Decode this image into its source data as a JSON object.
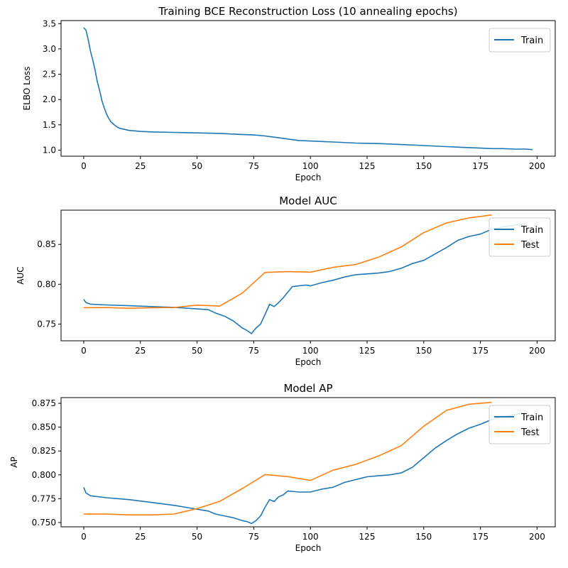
{
  "colors": {
    "train": "#1f77b4",
    "test": "#ff7f0e",
    "axis": "#000000",
    "legend_border": "#cccccc"
  },
  "chart_data": [
    {
      "type": "line",
      "title": "Training BCE Reconstruction Loss (10 annealing epochs)",
      "xlabel": "Epoch",
      "ylabel": "ELBO Loss",
      "xlim": [
        -10,
        208
      ],
      "ylim": [
        0.88,
        3.56
      ],
      "xticks": [
        0,
        25,
        50,
        75,
        100,
        125,
        150,
        175,
        200
      ],
      "yticks": [
        1.0,
        1.5,
        2.0,
        2.5,
        3.0,
        3.5
      ],
      "ytick_labels": [
        "1.0",
        "1.5",
        "2.0",
        "2.5",
        "3.0",
        "3.5"
      ],
      "grid": false,
      "legend": "upper-right",
      "series": [
        {
          "name": "Train",
          "color": "#1f77b4",
          "x": [
            0,
            1,
            2,
            3,
            4,
            5,
            6,
            7,
            8,
            9,
            10,
            11,
            12,
            13,
            14,
            15,
            16,
            18,
            20,
            25,
            30,
            40,
            50,
            60,
            70,
            75,
            80,
            85,
            90,
            95,
            100,
            105,
            110,
            120,
            130,
            140,
            150,
            160,
            170,
            175,
            180,
            185,
            190,
            195,
            198
          ],
          "y": [
            3.42,
            3.37,
            3.18,
            2.95,
            2.78,
            2.58,
            2.35,
            2.18,
            1.98,
            1.84,
            1.72,
            1.63,
            1.56,
            1.52,
            1.48,
            1.45,
            1.43,
            1.41,
            1.39,
            1.37,
            1.36,
            1.35,
            1.34,
            1.33,
            1.31,
            1.3,
            1.28,
            1.25,
            1.22,
            1.19,
            1.18,
            1.17,
            1.16,
            1.14,
            1.13,
            1.11,
            1.09,
            1.07,
            1.05,
            1.04,
            1.03,
            1.03,
            1.02,
            1.02,
            1.01
          ]
        }
      ]
    },
    {
      "type": "line",
      "title": "Model AUC",
      "xlabel": "Epoch",
      "ylabel": "AUC",
      "xlim": [
        -10,
        208
      ],
      "ylim": [
        0.729,
        0.893
      ],
      "xticks": [
        0,
        25,
        50,
        75,
        100,
        125,
        150,
        175,
        200
      ],
      "yticks": [
        0.75,
        0.8,
        0.85
      ],
      "ytick_labels": [
        "0.75",
        "0.80",
        "0.85"
      ],
      "grid": false,
      "legend": "upper-right",
      "series": [
        {
          "name": "Train",
          "color": "#1f77b4",
          "x": [
            0,
            1,
            3,
            10,
            20,
            30,
            40,
            45,
            50,
            55,
            58,
            62,
            66,
            70,
            72,
            74,
            76,
            78,
            80,
            82,
            84,
            86,
            88,
            90,
            92,
            95,
            98,
            100,
            105,
            110,
            115,
            120,
            125,
            130,
            135,
            140,
            145,
            150,
            155,
            160,
            165,
            170,
            175,
            180,
            185,
            190,
            195
          ],
          "y": [
            0.781,
            0.777,
            0.775,
            0.774,
            0.773,
            0.772,
            0.771,
            0.77,
            0.769,
            0.768,
            0.764,
            0.76,
            0.754,
            0.745,
            0.742,
            0.738,
            0.745,
            0.75,
            0.762,
            0.775,
            0.772,
            0.777,
            0.783,
            0.79,
            0.797,
            0.798,
            0.799,
            0.798,
            0.802,
            0.805,
            0.809,
            0.812,
            0.813,
            0.814,
            0.816,
            0.82,
            0.826,
            0.83,
            0.838,
            0.846,
            0.855,
            0.86,
            0.863,
            0.869,
            0.872,
            0.874,
            0.876
          ]
        },
        {
          "name": "Test",
          "color": "#ff7f0e",
          "x": [
            0,
            10,
            20,
            30,
            40,
            50,
            60,
            70,
            80,
            90,
            100,
            110,
            120,
            130,
            140,
            150,
            160,
            170,
            180
          ],
          "y": [
            0.7705,
            0.7707,
            0.7698,
            0.7705,
            0.7708,
            0.7737,
            0.7726,
            0.789,
            0.8148,
            0.8158,
            0.8152,
            0.8212,
            0.8248,
            0.834,
            0.8467,
            0.8648,
            0.877,
            0.8833,
            0.887
          ]
        }
      ]
    },
    {
      "type": "line",
      "title": "Model AP",
      "xlabel": "Epoch",
      "ylabel": "AP",
      "xlim": [
        -10,
        208
      ],
      "ylim": [
        0.7455,
        0.881
      ],
      "xticks": [
        0,
        25,
        50,
        75,
        100,
        125,
        150,
        175,
        200
      ],
      "yticks": [
        0.75,
        0.775,
        0.8,
        0.825,
        0.85,
        0.875
      ],
      "ytick_labels": [
        "0.750",
        "0.775",
        "0.800",
        "0.825",
        "0.850",
        "0.875"
      ],
      "grid": false,
      "legend": "upper-right",
      "series": [
        {
          "name": "Train",
          "color": "#1f77b4",
          "x": [
            0,
            1,
            3,
            10,
            20,
            30,
            40,
            45,
            50,
            55,
            58,
            62,
            66,
            70,
            72,
            74,
            76,
            78,
            80,
            82,
            84,
            86,
            88,
            90,
            95,
            100,
            105,
            110,
            115,
            120,
            125,
            130,
            135,
            140,
            145,
            150,
            155,
            160,
            165,
            170,
            175,
            180,
            185,
            190,
            195
          ],
          "y": [
            0.787,
            0.781,
            0.778,
            0.776,
            0.774,
            0.771,
            0.768,
            0.766,
            0.764,
            0.762,
            0.759,
            0.757,
            0.755,
            0.752,
            0.751,
            0.749,
            0.752,
            0.757,
            0.766,
            0.774,
            0.772,
            0.777,
            0.779,
            0.783,
            0.782,
            0.782,
            0.785,
            0.787,
            0.792,
            0.795,
            0.798,
            0.799,
            0.8,
            0.802,
            0.808,
            0.818,
            0.828,
            0.836,
            0.843,
            0.849,
            0.853,
            0.858,
            0.861,
            0.863,
            0.865
          ]
        },
        {
          "name": "Test",
          "color": "#ff7f0e",
          "x": [
            0,
            10,
            20,
            30,
            40,
            50,
            60,
            70,
            80,
            90,
            100,
            110,
            120,
            130,
            140,
            150,
            160,
            170,
            180
          ],
          "y": [
            0.759,
            0.7588,
            0.758,
            0.758,
            0.7589,
            0.7646,
            0.7722,
            0.7857,
            0.8003,
            0.7981,
            0.7941,
            0.8049,
            0.811,
            0.8198,
            0.8305,
            0.851,
            0.8676,
            0.8741,
            0.876
          ]
        }
      ]
    }
  ]
}
